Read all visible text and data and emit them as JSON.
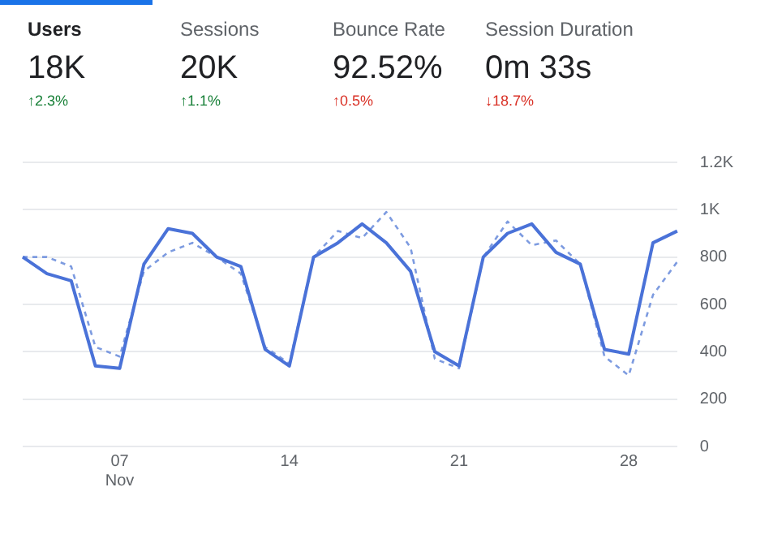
{
  "chart_data": [
    {
      "type": "other",
      "categories": [
        "Users",
        "Sessions",
        "Bounce Rate",
        "Session Duration"
      ],
      "value_labels": [
        "18K",
        "20K",
        "92.52%",
        "0m 33s"
      ],
      "annotations": [
        "↑2.3%",
        "↑1.1%",
        "↑0.5%",
        "↓18.7%"
      ],
      "colors": [
        "#188038",
        "#188038",
        "#d93025",
        "#d93025"
      ]
    },
    {
      "type": "line",
      "categories": [
        null,
        null,
        null,
        null,
        "07\nNov",
        null,
        null,
        null,
        null,
        null,
        null,
        "14",
        null,
        null,
        null,
        null,
        null,
        null,
        "21",
        null,
        null,
        null,
        null,
        null,
        null,
        "28",
        null,
        null
      ],
      "series": [
        {
          "color": "#4a72d8",
          "line_style": "solid",
          "values": [
            800,
            730,
            700,
            340,
            330,
            770,
            920,
            900,
            800,
            760,
            410,
            340,
            800,
            860,
            940,
            860,
            740,
            400,
            340,
            800,
            900,
            940,
            820,
            770,
            410,
            390,
            860,
            910
          ]
        },
        {
          "color": "#7d9be0",
          "line_style": "dashed",
          "values": [
            800,
            800,
            760,
            420,
            380,
            740,
            820,
            860,
            800,
            730,
            420,
            350,
            800,
            910,
            880,
            990,
            840,
            370,
            330,
            800,
            950,
            850,
            870,
            770,
            380,
            300,
            640,
            780
          ]
        }
      ],
      "ylim": [
        0,
        1200
      ],
      "yticks": [
        0,
        200,
        400,
        600,
        800,
        {
          "value": 1000,
          "label": "1K"
        },
        {
          "value": 1200,
          "label": "1.2K"
        }
      ],
      "grid": "y",
      "marker": "none",
      "legend": false
    }
  ]
}
